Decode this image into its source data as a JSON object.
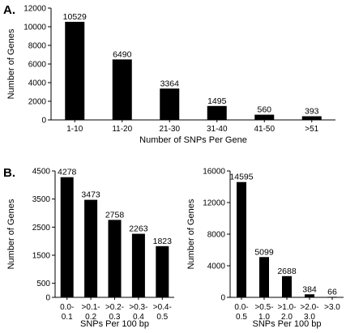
{
  "panel_labels": {
    "a": "A.",
    "b": "B."
  },
  "chart_data": [
    {
      "type": "bar",
      "panel": "A.",
      "categories": [
        "1-10",
        "11-20",
        "21-30",
        "31-40",
        "41-50",
        ">51"
      ],
      "values": [
        10529,
        6490,
        3364,
        1495,
        560,
        393
      ],
      "data_labels": [
        "10529",
        "6490",
        "3364",
        "1495",
        "560",
        "393"
      ],
      "xlabel": "Number of SNPs Per Gene",
      "ylabel": "Number of Genes",
      "ylim": [
        0,
        12000
      ],
      "yticks": [
        0,
        2000,
        4000,
        6000,
        8000,
        10000,
        12000
      ],
      "grid": false,
      "color": "#000000"
    },
    {
      "type": "bar",
      "panel": "B.",
      "categories": [
        [
          "0.0-",
          "0.1"
        ],
        [
          ">0.1-",
          "0.2"
        ],
        [
          ">0.2-",
          "0.3"
        ],
        [
          ">0.3-",
          "0.4"
        ],
        [
          ">0.4-",
          "0.5"
        ]
      ],
      "values": [
        4278,
        3473,
        2758,
        2263,
        1823
      ],
      "data_labels": [
        "4278",
        "3473",
        "2758",
        "2263",
        "1823"
      ],
      "xlabel": "SNPs Per 100 bp",
      "ylabel": "Number of Genes",
      "ylim": [
        0,
        4500
      ],
      "yticks": [
        0,
        500,
        1500,
        2500,
        3500,
        4500
      ],
      "grid": false,
      "color": "#000000"
    },
    {
      "type": "bar",
      "panel": "B.",
      "categories": [
        [
          "0.0-",
          "0.5"
        ],
        [
          ">0.5-",
          "1.0"
        ],
        [
          ">1.0-",
          "2.0"
        ],
        [
          ">2.0-",
          "3.0"
        ],
        [
          ">3.0",
          ""
        ]
      ],
      "values": [
        14595,
        5099,
        2688,
        384,
        66
      ],
      "data_labels": [
        "14595",
        "5099",
        "2688",
        "384",
        "66"
      ],
      "xlabel": "SNPs Per 100 bp",
      "ylabel": "Number of Genes",
      "ylim": [
        0,
        16000
      ],
      "yticks": [
        0,
        4000,
        8000,
        12000,
        16000
      ],
      "grid": false,
      "color": "#000000"
    }
  ]
}
